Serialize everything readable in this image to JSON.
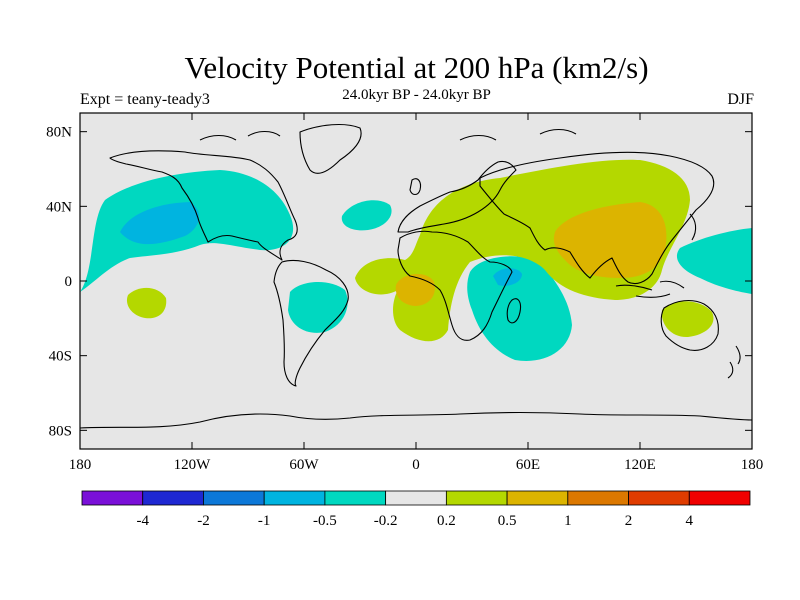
{
  "header": {
    "title": "Velocity Potential at 200 hPa (km2/s)",
    "subtitle": "24.0kyr BP - 24.0kyr BP",
    "experiment": "Expt = teany-teady3",
    "season": "DJF"
  },
  "map": {
    "projection": "cylindrical equidistant",
    "lon_range": [
      -180,
      180
    ],
    "lat_range": [
      -90,
      90
    ],
    "lat_ticks": [
      {
        "value": 80,
        "label": "80N"
      },
      {
        "value": 40,
        "label": "40N"
      },
      {
        "value": 0,
        "label": "0"
      },
      {
        "value": -40,
        "label": "40S"
      },
      {
        "value": -80,
        "label": "80S"
      }
    ],
    "lon_ticks": [
      {
        "value": -180,
        "label": "180"
      },
      {
        "value": -120,
        "label": "120W"
      },
      {
        "value": -60,
        "label": "60W"
      },
      {
        "value": 0,
        "label": "0"
      },
      {
        "value": 60,
        "label": "60E"
      },
      {
        "value": 120,
        "label": "120E"
      },
      {
        "value": 180,
        "label": "180"
      }
    ],
    "background_color": "#e6e6e6",
    "coastline_color": "#000000"
  },
  "colorbar": {
    "colors": [
      "#7a10d8",
      "#1e28d2",
      "#0c78d8",
      "#00b4e0",
      "#00d8c0",
      "#e6e6e6",
      "#b4d800",
      "#dcb400",
      "#dc7800",
      "#e03c00",
      "#f00000"
    ],
    "labels": [
      "-4",
      "-2",
      "-1",
      "-0.5",
      "-0.2",
      "0.2",
      "0.5",
      "1",
      "2",
      "4"
    ]
  }
}
